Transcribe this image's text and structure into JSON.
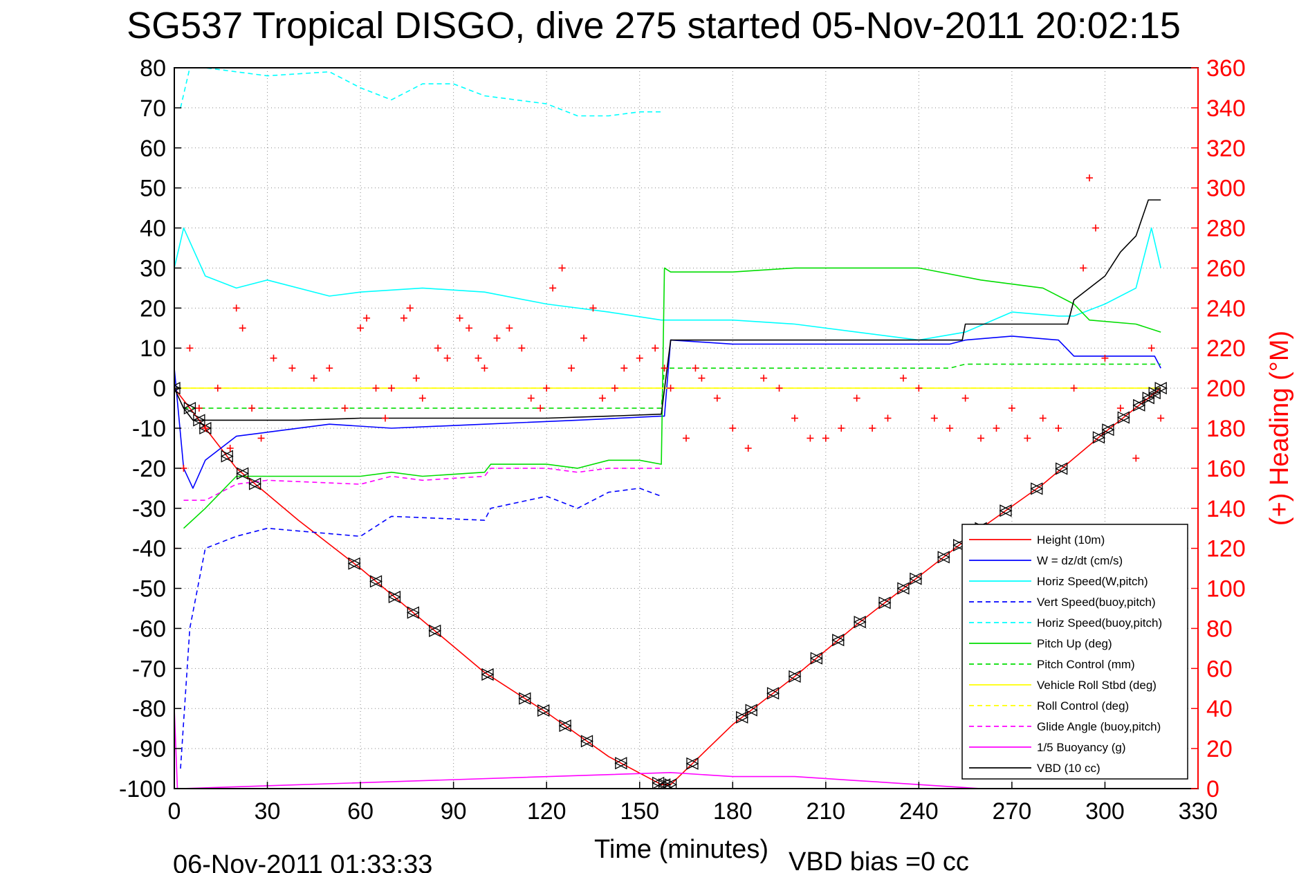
{
  "chart_data": {
    "type": "line",
    "title": "SG537 Tropical DISGO, dive 275 started 05-Nov-2011 20:02:15",
    "xlabel": "Time (minutes)",
    "ylabel_right": "(+) Heading (°M)",
    "footer_left": "06-Nov-2011 01:33:33",
    "footer_right": "VBD bias =0 cc",
    "xlim": [
      0,
      330
    ],
    "ylim_left": [
      -100,
      80
    ],
    "ylim_right": [
      0,
      360
    ],
    "xticks": [
      0,
      30,
      60,
      90,
      120,
      150,
      180,
      210,
      240,
      270,
      300,
      330
    ],
    "yticks_left": [
      80,
      70,
      60,
      50,
      40,
      30,
      20,
      10,
      0,
      -10,
      -20,
      -30,
      -40,
      -50,
      -60,
      -70,
      -80,
      -90,
      -100
    ],
    "yticks_right": [
      360,
      340,
      320,
      300,
      280,
      260,
      240,
      220,
      200,
      180,
      160,
      140,
      120,
      100,
      80,
      60,
      40,
      20,
      0
    ],
    "grid": true,
    "legend_position": "bottom-right",
    "series": [
      {
        "name": "Height (10m)",
        "color": "#ff0000",
        "style": "solid",
        "x": [
          0,
          20,
          40,
          60,
          80,
          100,
          120,
          140,
          157,
          160,
          180,
          200,
          220,
          240,
          260,
          280,
          300,
          318
        ],
        "y": [
          0,
          -20,
          -33,
          -45,
          -58,
          -71,
          -81,
          -92,
          -99,
          -99,
          -84,
          -72,
          -59,
          -47,
          -35,
          -24,
          -11,
          0
        ]
      },
      {
        "name": "W = dz/dt (cm/s)",
        "color": "#0000ff",
        "style": "solid",
        "x": [
          0,
          3,
          6,
          10,
          20,
          30,
          50,
          70,
          100,
          130,
          157,
          158,
          160,
          180,
          200,
          220,
          250,
          255,
          270,
          285,
          290,
          300,
          310,
          316,
          318
        ],
        "y": [
          5,
          -20,
          -25,
          -18,
          -12,
          -11,
          -9,
          -10,
          -9,
          -8,
          -7,
          -7,
          12,
          11,
          11,
          11,
          11,
          12,
          13,
          12,
          8,
          8,
          8,
          8,
          5
        ]
      },
      {
        "name": "Horiz Speed(W,pitch)",
        "color": "#00ffff",
        "style": "solid",
        "x": [
          0,
          3,
          10,
          20,
          30,
          50,
          60,
          80,
          100,
          120,
          140,
          157,
          160,
          180,
          200,
          220,
          240,
          255,
          270,
          285,
          290,
          300,
          310,
          315,
          318
        ],
        "y": [
          30,
          40,
          28,
          25,
          27,
          23,
          24,
          25,
          24,
          21,
          19,
          17,
          17,
          17,
          16,
          14,
          12,
          14,
          19,
          18,
          18,
          21,
          25,
          40,
          30
        ]
      },
      {
        "name": "Vert Speed(buoy,pitch)",
        "color": "#0000ff",
        "style": "dashed",
        "x": [
          2,
          5,
          10,
          20,
          30,
          60,
          70,
          100,
          102,
          120,
          130,
          140,
          150,
          157
        ],
        "y": [
          -95,
          -60,
          -40,
          -37,
          -35,
          -37,
          -32,
          -33,
          -30,
          -27,
          -30,
          -26,
          -25,
          -27
        ]
      },
      {
        "name": "Horiz Speed(buoy,pitch)",
        "color": "#00ffff",
        "style": "dashed",
        "x": [
          2,
          5,
          10,
          20,
          30,
          50,
          60,
          70,
          80,
          90,
          100,
          110,
          120,
          130,
          140,
          150,
          157
        ],
        "y": [
          70,
          80,
          80,
          79,
          78,
          79,
          75,
          72,
          76,
          76,
          73,
          72,
          71,
          68,
          68,
          69,
          69
        ]
      },
      {
        "name": "Pitch Up (deg)",
        "color": "#00dd00",
        "style": "solid",
        "x": [
          3,
          10,
          20,
          30,
          60,
          70,
          80,
          100,
          102,
          120,
          130,
          140,
          150,
          157,
          158,
          160,
          180,
          200,
          220,
          240,
          260,
          280,
          290,
          295,
          310,
          318
        ],
        "y": [
          -35,
          -30,
          -22,
          -22,
          -22,
          -21,
          -22,
          -21,
          -19,
          -19,
          -20,
          -18,
          -18,
          -19,
          30,
          29,
          29,
          30,
          30,
          30,
          27,
          25,
          21,
          17,
          16,
          14
        ]
      },
      {
        "name": "Pitch Control (mm)",
        "color": "#00dd00",
        "style": "dashed",
        "x": [
          3,
          30,
          60,
          90,
          120,
          150,
          157,
          158,
          200,
          250,
          255,
          300,
          318
        ],
        "y": [
          -5,
          -5,
          -5,
          -5,
          -5,
          -5,
          -5,
          5,
          5,
          5,
          6,
          6,
          6
        ]
      },
      {
        "name": "Vehicle Roll Stbd (deg)",
        "color": "#ffff00",
        "style": "solid",
        "x": [
          0,
          20,
          40,
          60,
          80,
          100,
          120,
          140,
          157,
          160,
          180,
          200,
          220,
          240,
          260,
          280,
          300,
          318
        ],
        "y": [
          0,
          0,
          0,
          0,
          0,
          0,
          0,
          0,
          0,
          0,
          0,
          0,
          0,
          0,
          0,
          0,
          0,
          0
        ]
      },
      {
        "name": "Roll Control (deg)",
        "color": "#ffff00",
        "style": "dashed",
        "x": [
          0,
          100,
          157,
          200,
          300,
          318
        ],
        "y": [
          0,
          0,
          0,
          0,
          0,
          0
        ]
      },
      {
        "name": "Glide Angle (buoy,pitch)",
        "color": "#ff00ff",
        "style": "dashed",
        "x": [
          3,
          10,
          20,
          30,
          60,
          70,
          80,
          100,
          102,
          120,
          130,
          140,
          150,
          157
        ],
        "y": [
          -28,
          -28,
          -24,
          -23,
          -24,
          -22,
          -23,
          -22,
          -20,
          -20,
          -21,
          -20,
          -20,
          -20
        ]
      },
      {
        "name": "1/5 Buoyancy (g)",
        "color": "#ff00ff",
        "style": "solid",
        "x": [
          0,
          1,
          2,
          160,
          180,
          200,
          220,
          240,
          260,
          280,
          300
        ],
        "y": [
          -80,
          -100,
          -100,
          -96,
          -97,
          -97,
          -98,
          -99,
          -100,
          -100,
          -100
        ]
      },
      {
        "name": "VBD (10 cc)",
        "color": "#000000",
        "style": "solid",
        "x": [
          0,
          3,
          6,
          20,
          40,
          60,
          80,
          100,
          120,
          140,
          157,
          160,
          200,
          240,
          254,
          255,
          288,
          290,
          300,
          305,
          310,
          314,
          318
        ],
        "y": [
          0,
          -5,
          -8,
          -8,
          -8,
          -7.5,
          -7.5,
          -7.5,
          -7.5,
          -7,
          -6.5,
          12,
          12,
          12,
          12,
          16,
          16,
          22,
          28,
          34,
          38,
          47,
          47
        ]
      }
    ],
    "heading_series": {
      "name": "(+) Heading (°M)",
      "color": "#ff0000",
      "marker": "+",
      "x": [
        0,
        3,
        5,
        8,
        10,
        14,
        18,
        20,
        22,
        25,
        28,
        32,
        38,
        45,
        50,
        55,
        60,
        62,
        65,
        68,
        70,
        74,
        76,
        78,
        80,
        85,
        88,
        92,
        95,
        98,
        100,
        104,
        108,
        112,
        115,
        118,
        120,
        122,
        125,
        128,
        132,
        135,
        138,
        142,
        145,
        150,
        155,
        158,
        160,
        165,
        168,
        170,
        175,
        180,
        185,
        190,
        195,
        200,
        205,
        210,
        215,
        220,
        225,
        230,
        235,
        240,
        245,
        250,
        255,
        260,
        265,
        270,
        275,
        280,
        285,
        290,
        293,
        295,
        297,
        300,
        305,
        310,
        315,
        318
      ],
      "y": [
        120,
        160,
        220,
        190,
        180,
        200,
        170,
        240,
        230,
        190,
        175,
        215,
        210,
        205,
        210,
        190,
        230,
        235,
        200,
        185,
        200,
        235,
        240,
        205,
        195,
        220,
        215,
        235,
        230,
        215,
        210,
        225,
        230,
        220,
        195,
        190,
        200,
        250,
        260,
        210,
        225,
        240,
        195,
        200,
        210,
        215,
        220,
        210,
        200,
        175,
        210,
        205,
        195,
        180,
        170,
        205,
        200,
        185,
        175,
        175,
        180,
        195,
        180,
        185,
        205,
        200,
        185,
        180,
        195,
        175,
        180,
        190,
        175,
        185,
        180,
        200,
        260,
        305,
        280,
        215,
        190,
        165,
        220,
        185
      ]
    },
    "height_markers_x": [
      0,
      5,
      8,
      10,
      17,
      22,
      26,
      58,
      65,
      71,
      77,
      84,
      101,
      113,
      119,
      126,
      133,
      144,
      156,
      158,
      160,
      167,
      183,
      186,
      193,
      200,
      207,
      214,
      221,
      229,
      235,
      239,
      248,
      253,
      260,
      268,
      278,
      286,
      298,
      301,
      306,
      311,
      314,
      316,
      318
    ]
  }
}
